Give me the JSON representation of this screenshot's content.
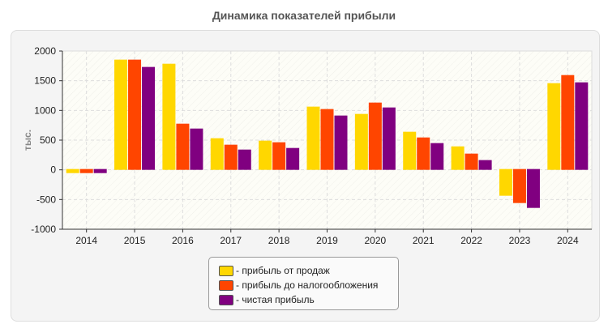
{
  "chart_data": {
    "type": "bar",
    "title": "Динамика показателей прибыли",
    "ylabel": "тыс.",
    "xlabel": "",
    "ylim": [
      -1000,
      2000
    ],
    "yticks": [
      2000,
      1500,
      1000,
      500,
      0,
      -500,
      -1000
    ],
    "categories": [
      "2014",
      "2015",
      "2016",
      "2017",
      "2018",
      "2019",
      "2020",
      "2021",
      "2022",
      "2023",
      "2024"
    ],
    "series": [
      {
        "name": "- прибыль от продаж",
        "color": "#FFD700",
        "values": [
          -55,
          1855,
          1786,
          532,
          491,
          1064,
          941,
          641,
          395,
          -436,
          1459
        ]
      },
      {
        "name": "- прибыль до налогообложения",
        "color": "#FF4500",
        "values": [
          -55,
          1855,
          777,
          423,
          464,
          1023,
          1132,
          545,
          273,
          -559,
          1595
        ]
      },
      {
        "name": "- чистая прибыль",
        "color": "#800080",
        "values": [
          -55,
          1732,
          695,
          341,
          368,
          914,
          1050,
          450,
          164,
          -641,
          1473
        ]
      }
    ],
    "grid": true,
    "legend": "bottom-center"
  }
}
